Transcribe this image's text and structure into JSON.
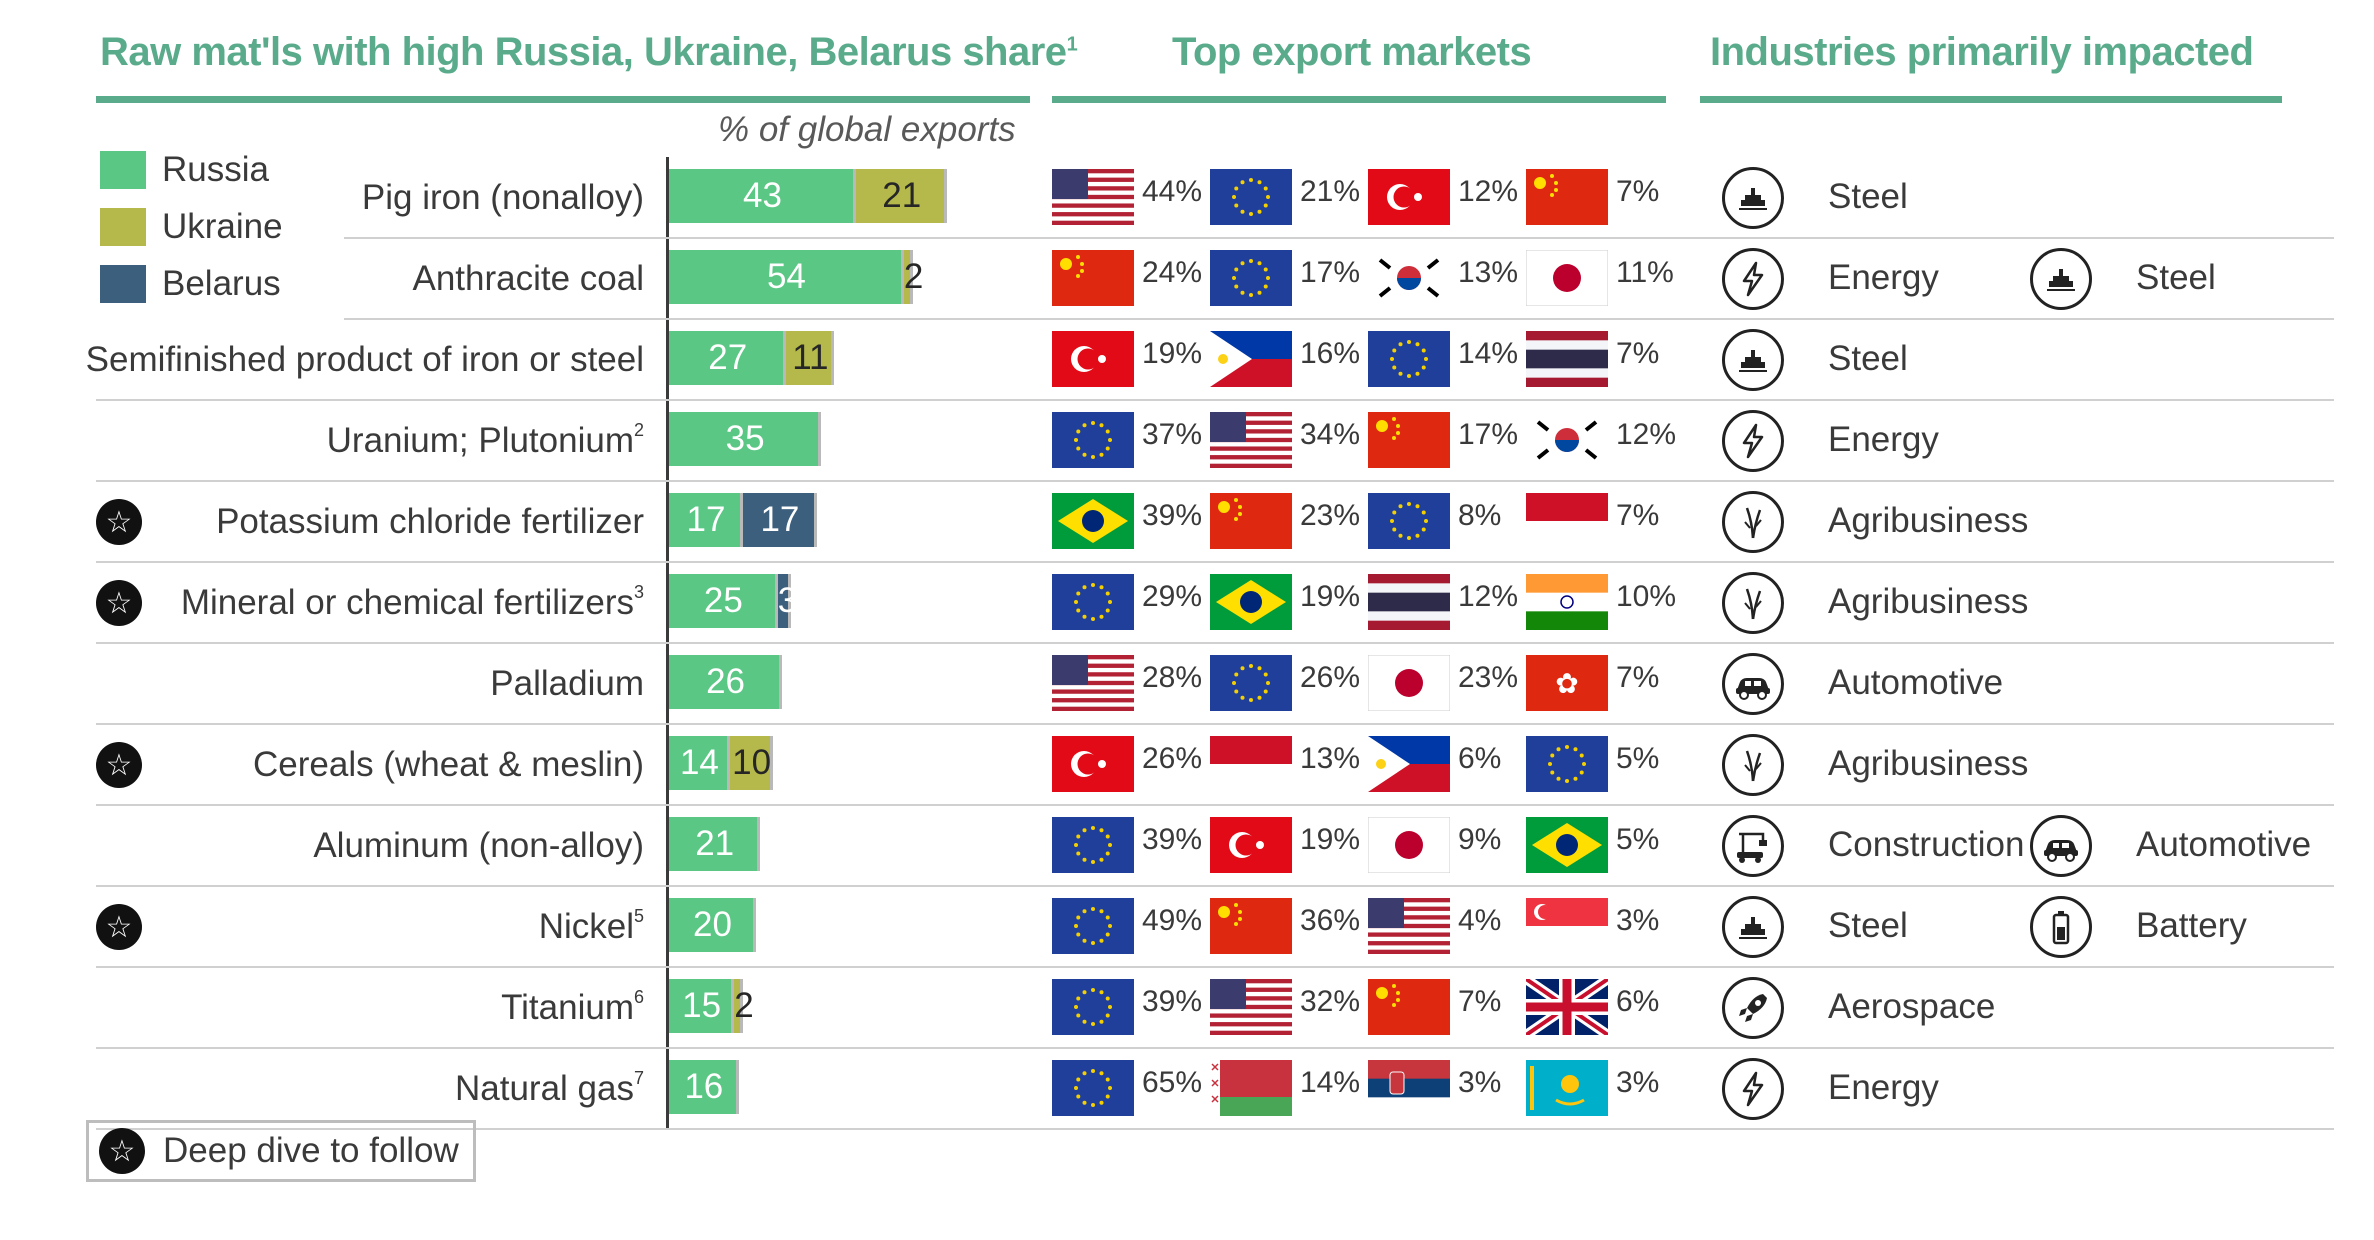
{
  "headers": {
    "materials": "Raw mat'ls with high Russia, Ukraine, Belarus share",
    "materials_footnote": "1",
    "markets": "Top export markets",
    "industries": "Industries primarily impacted"
  },
  "subtitle": "% of global exports",
  "legend": [
    {
      "label": "Russia",
      "color": "#5ac785"
    },
    {
      "label": "Ukraine",
      "color": "#b5b84a"
    },
    {
      "label": "Belarus",
      "color": "#3c5f7d"
    }
  ],
  "deep_dive_label": "Deep dive to follow",
  "chart_data": {
    "type": "bar",
    "orientation": "horizontal-stacked",
    "title": "Raw mat'ls with high Russia, Ukraine, Belarus share",
    "xlabel": "% of global exports",
    "xlim": [
      0,
      100
    ],
    "series_names": [
      "Russia",
      "Ukraine",
      "Belarus"
    ],
    "rows": [
      {
        "name": "Pig iron (nonalloy)",
        "foot": "",
        "deep_dive": false,
        "values": [
          43,
          21,
          0
        ],
        "markets": [
          {
            "flag": "us",
            "pct": "44%"
          },
          {
            "flag": "eu",
            "pct": "21%"
          },
          {
            "flag": "tr",
            "pct": "12%"
          },
          {
            "flag": "cn",
            "pct": "7%"
          }
        ],
        "industries": [
          {
            "icon": "steel-icon",
            "label": "Steel"
          }
        ]
      },
      {
        "name": "Anthracite coal",
        "foot": "",
        "deep_dive": false,
        "values": [
          54,
          2,
          0
        ],
        "markets": [
          {
            "flag": "cn",
            "pct": "24%"
          },
          {
            "flag": "eu",
            "pct": "17%"
          },
          {
            "flag": "kr",
            "pct": "13%"
          },
          {
            "flag": "jp",
            "pct": "11%"
          }
        ],
        "industries": [
          {
            "icon": "energy-icon",
            "label": "Energy"
          },
          {
            "icon": "steel-icon",
            "label": "Steel"
          }
        ]
      },
      {
        "name": "Semifinished product of iron or steel",
        "foot": "",
        "deep_dive": false,
        "values": [
          27,
          11,
          0
        ],
        "markets": [
          {
            "flag": "tr",
            "pct": "19%"
          },
          {
            "flag": "ph",
            "pct": "16%"
          },
          {
            "flag": "eu",
            "pct": "14%"
          },
          {
            "flag": "th",
            "pct": "7%"
          }
        ],
        "industries": [
          {
            "icon": "steel-icon",
            "label": "Steel"
          }
        ]
      },
      {
        "name": "Uranium; Plutonium",
        "foot": "2",
        "deep_dive": false,
        "values": [
          35,
          0,
          0
        ],
        "markets": [
          {
            "flag": "eu",
            "pct": "37%"
          },
          {
            "flag": "us",
            "pct": "34%"
          },
          {
            "flag": "cn",
            "pct": "17%"
          },
          {
            "flag": "kr",
            "pct": "12%"
          }
        ],
        "industries": [
          {
            "icon": "energy-icon",
            "label": "Energy"
          }
        ]
      },
      {
        "name": "Potassium chloride fertilizer",
        "foot": "",
        "deep_dive": true,
        "values": [
          17,
          0,
          17
        ],
        "markets": [
          {
            "flag": "br",
            "pct": "39%"
          },
          {
            "flag": "cn",
            "pct": "23%"
          },
          {
            "flag": "eu",
            "pct": "8%"
          },
          {
            "flag": "id",
            "pct": "7%"
          }
        ],
        "industries": [
          {
            "icon": "agri-icon",
            "label": "Agribusiness"
          }
        ]
      },
      {
        "name": "Mineral or chemical fertilizers",
        "foot": "3",
        "deep_dive": true,
        "values": [
          25,
          0,
          3
        ],
        "markets": [
          {
            "flag": "eu",
            "pct": "29%"
          },
          {
            "flag": "br",
            "pct": "19%"
          },
          {
            "flag": "th",
            "pct": "12%"
          },
          {
            "flag": "in",
            "pct": "10%"
          }
        ],
        "industries": [
          {
            "icon": "agri-icon",
            "label": "Agribusiness"
          }
        ]
      },
      {
        "name": "Palladium",
        "foot": "",
        "deep_dive": false,
        "values": [
          26,
          0,
          0
        ],
        "markets": [
          {
            "flag": "us",
            "pct": "28%"
          },
          {
            "flag": "eu",
            "pct": "26%"
          },
          {
            "flag": "jp",
            "pct": "23%"
          },
          {
            "flag": "hk",
            "pct": "7%"
          }
        ],
        "industries": [
          {
            "icon": "car-icon",
            "label": "Automotive"
          }
        ]
      },
      {
        "name": "Cereals (wheat & meslin)",
        "foot": "",
        "deep_dive": true,
        "values": [
          14,
          10,
          0
        ],
        "markets": [
          {
            "flag": "tr",
            "pct": "26%"
          },
          {
            "flag": "id",
            "pct": "13%"
          },
          {
            "flag": "ph",
            "pct": "6%"
          },
          {
            "flag": "eu",
            "pct": "5%"
          }
        ],
        "industries": [
          {
            "icon": "agri-icon",
            "label": "Agribusiness"
          }
        ]
      },
      {
        "name": "Aluminum (non-alloy)",
        "foot": "",
        "deep_dive": false,
        "values": [
          21,
          0,
          0
        ],
        "markets": [
          {
            "flag": "eu",
            "pct": "39%"
          },
          {
            "flag": "tr",
            "pct": "19%"
          },
          {
            "flag": "jp",
            "pct": "9%"
          },
          {
            "flag": "br",
            "pct": "5%"
          }
        ],
        "industries": [
          {
            "icon": "construction-icon",
            "label": "Construction"
          },
          {
            "icon": "car-icon",
            "label": "Automotive"
          }
        ]
      },
      {
        "name": "Nickel",
        "foot": "5",
        "deep_dive": true,
        "values": [
          20,
          0,
          0
        ],
        "markets": [
          {
            "flag": "eu",
            "pct": "49%"
          },
          {
            "flag": "cn",
            "pct": "36%"
          },
          {
            "flag": "us",
            "pct": "4%"
          },
          {
            "flag": "sg",
            "pct": "3%"
          }
        ],
        "industries": [
          {
            "icon": "steel-icon",
            "label": "Steel"
          },
          {
            "icon": "battery-icon",
            "label": "Battery"
          }
        ]
      },
      {
        "name": "Titanium",
        "foot": "6",
        "deep_dive": false,
        "values": [
          15,
          2,
          0
        ],
        "markets": [
          {
            "flag": "eu",
            "pct": "39%"
          },
          {
            "flag": "us",
            "pct": "32%"
          },
          {
            "flag": "cn",
            "pct": "7%"
          },
          {
            "flag": "gb",
            "pct": "6%"
          }
        ],
        "industries": [
          {
            "icon": "rocket-icon",
            "label": "Aerospace"
          }
        ]
      },
      {
        "name": "Natural gas",
        "foot": "7",
        "deep_dive": false,
        "values": [
          16,
          0,
          0
        ],
        "markets": [
          {
            "flag": "eu",
            "pct": "65%"
          },
          {
            "flag": "by",
            "pct": "14%"
          },
          {
            "flag": "rs",
            "pct": "3%"
          },
          {
            "flag": "kz",
            "pct": "3%"
          }
        ],
        "industries": [
          {
            "icon": "energy-icon",
            "label": "Energy"
          }
        ]
      }
    ]
  }
}
